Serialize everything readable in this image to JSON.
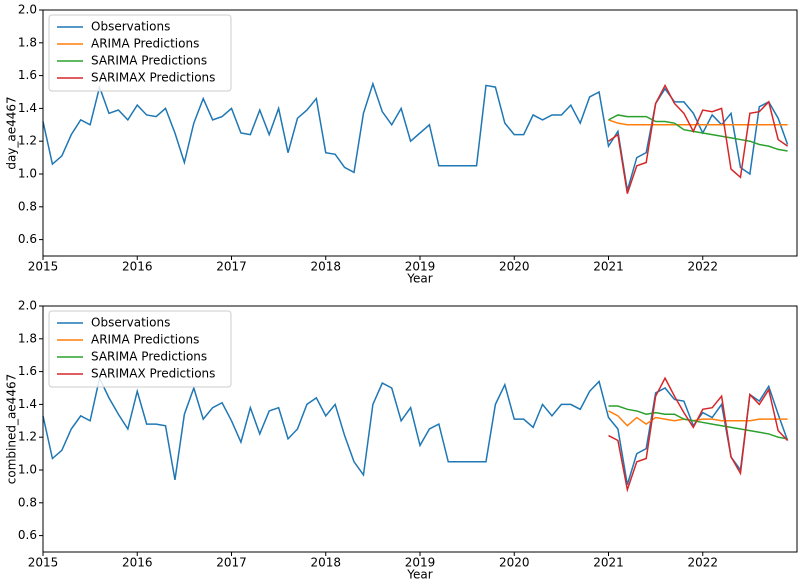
{
  "chart_data": [
    {
      "type": "line",
      "xlabel": "Year",
      "ylabel": "day_ae4467",
      "xlim": [
        2015,
        2023
      ],
      "ylim": [
        0.5,
        2.0
      ],
      "xticks": [
        2015,
        2016,
        2017,
        2018,
        2019,
        2020,
        2021,
        2022
      ],
      "yticks": [
        0.6,
        0.8,
        {
          "value": 1,
          "label": "1.0"
        },
        1.2,
        1.4,
        1.6,
        1.8,
        {
          "value": 2,
          "label": "2.0"
        }
      ],
      "grid": false,
      "legend": "upper-left",
      "series": [
        {
          "name": "Observations",
          "color": "#1f77b4",
          "x": [
            2015,
            2015.1,
            2015.2,
            2015.3,
            2015.4,
            2015.5,
            2015.6,
            2015.7,
            2015.8,
            2015.9,
            2016,
            2016.1,
            2016.2,
            2016.3,
            2016.4,
            2016.5,
            2016.6,
            2016.7,
            2016.8,
            2016.9,
            2017,
            2017.1,
            2017.2,
            2017.3,
            2017.4,
            2017.5,
            2017.6,
            2017.7,
            2017.8,
            2017.9,
            2018,
            2018.1,
            2018.2,
            2018.3,
            2018.4,
            2018.5,
            2018.6,
            2018.7,
            2018.8,
            2018.9,
            2019,
            2019.1,
            2019.2,
            2019.3,
            2019.4,
            2019.5,
            2019.6,
            2019.7,
            2019.8,
            2019.9,
            2020,
            2020.1,
            2020.2,
            2020.3,
            2020.4,
            2020.5,
            2020.6,
            2020.7,
            2020.8,
            2020.9,
            2021,
            2021.1,
            2021.2,
            2021.3,
            2021.4,
            2021.5,
            2021.6,
            2021.7,
            2021.8,
            2021.9,
            2022,
            2022.1,
            2022.2,
            2022.3,
            2022.4,
            2022.5,
            2022.6,
            2022.7,
            2022.8,
            2022.9
          ],
          "values": [
            1.32,
            1.06,
            1.11,
            1.24,
            1.33,
            1.3,
            1.53,
            1.37,
            1.39,
            1.33,
            1.42,
            1.36,
            1.35,
            1.4,
            1.25,
            1.07,
            1.31,
            1.46,
            1.33,
            1.35,
            1.4,
            1.25,
            1.24,
            1.39,
            1.24,
            1.4,
            1.13,
            1.34,
            1.39,
            1.46,
            1.13,
            1.12,
            1.04,
            1.01,
            1.37,
            1.55,
            1.38,
            1.3,
            1.4,
            1.2,
            1.25,
            1.3,
            1.05,
            1.05,
            1.05,
            1.05,
            1.05,
            1.54,
            1.53,
            1.31,
            1.24,
            1.24,
            1.36,
            1.33,
            1.36,
            1.36,
            1.42,
            1.31,
            1.47,
            1.5,
            1.17,
            1.26,
            0.9,
            1.1,
            1.13,
            1.43,
            1.52,
            1.44,
            1.44,
            1.37,
            1.25,
            1.36,
            1.3,
            1.37,
            1.04,
            1.0,
            1.41,
            1.44,
            1.34,
            1.18
          ]
        },
        {
          "name": "ARIMA Predictions",
          "color": "#ff7f0e",
          "x": [
            2021,
            2021.1,
            2021.2,
            2021.3,
            2021.4,
            2021.5,
            2021.6,
            2021.7,
            2021.8,
            2021.9,
            2022,
            2022.1,
            2022.2,
            2022.3,
            2022.4,
            2022.5,
            2022.6,
            2022.7,
            2022.8,
            2022.9
          ],
          "values": [
            1.33,
            1.31,
            1.3,
            1.3,
            1.3,
            1.3,
            1.3,
            1.3,
            1.3,
            1.3,
            1.3,
            1.3,
            1.3,
            1.3,
            1.3,
            1.3,
            1.3,
            1.3,
            1.3,
            1.3
          ]
        },
        {
          "name": "SARIMA Predictions",
          "color": "#2ca02c",
          "x": [
            2021,
            2021.1,
            2021.2,
            2021.3,
            2021.4,
            2021.5,
            2021.6,
            2021.7,
            2021.8,
            2021.9,
            2022,
            2022.1,
            2022.2,
            2022.3,
            2022.4,
            2022.5,
            2022.6,
            2022.7,
            2022.8,
            2022.9
          ],
          "values": [
            1.33,
            1.36,
            1.35,
            1.35,
            1.35,
            1.32,
            1.32,
            1.31,
            1.27,
            1.26,
            1.25,
            1.24,
            1.23,
            1.22,
            1.21,
            1.2,
            1.18,
            1.17,
            1.15,
            1.14
          ]
        },
        {
          "name": "SARIMAX Predictions",
          "color": "#d62728",
          "x": [
            2021,
            2021.1,
            2021.2,
            2021.3,
            2021.4,
            2021.5,
            2021.6,
            2021.7,
            2021.8,
            2021.9,
            2022,
            2022.1,
            2022.2,
            2022.3,
            2022.4,
            2022.5,
            2022.6,
            2022.7,
            2022.8,
            2022.9
          ],
          "values": [
            1.2,
            1.24,
            0.88,
            1.05,
            1.07,
            1.43,
            1.54,
            1.43,
            1.37,
            1.26,
            1.39,
            1.38,
            1.4,
            1.03,
            0.98,
            1.37,
            1.38,
            1.44,
            1.21,
            1.17
          ]
        }
      ]
    },
    {
      "type": "line",
      "xlabel": "Year",
      "ylabel": "combined_ae4467",
      "xlim": [
        2015,
        2023
      ],
      "ylim": [
        0.5,
        2.0
      ],
      "xticks": [
        2015,
        2016,
        2017,
        2018,
        2019,
        2020,
        2021,
        2022
      ],
      "yticks": [
        0.6,
        0.8,
        {
          "value": 1,
          "label": "1.0"
        },
        1.2,
        1.4,
        1.6,
        1.8,
        {
          "value": 2,
          "label": "2.0"
        }
      ],
      "grid": false,
      "legend": "upper-left",
      "series": [
        {
          "name": "Observations",
          "color": "#1f77b4",
          "x": [
            2015,
            2015.1,
            2015.2,
            2015.3,
            2015.4,
            2015.5,
            2015.6,
            2015.7,
            2015.8,
            2015.9,
            2016,
            2016.1,
            2016.2,
            2016.3,
            2016.4,
            2016.5,
            2016.6,
            2016.7,
            2016.8,
            2016.9,
            2017,
            2017.1,
            2017.2,
            2017.3,
            2017.4,
            2017.5,
            2017.6,
            2017.7,
            2017.8,
            2017.9,
            2018,
            2018.1,
            2018.2,
            2018.3,
            2018.4,
            2018.5,
            2018.6,
            2018.7,
            2018.8,
            2018.9,
            2019,
            2019.1,
            2019.2,
            2019.3,
            2019.4,
            2019.5,
            2019.6,
            2019.7,
            2019.8,
            2019.9,
            2020,
            2020.1,
            2020.2,
            2020.3,
            2020.4,
            2020.5,
            2020.6,
            2020.7,
            2020.8,
            2020.9,
            2021,
            2021.1,
            2021.2,
            2021.3,
            2021.4,
            2021.5,
            2021.6,
            2021.7,
            2021.8,
            2021.9,
            2022,
            2022.1,
            2022.2,
            2022.3,
            2022.4,
            2022.5,
            2022.6,
            2022.7,
            2022.8,
            2022.9
          ],
          "values": [
            1.33,
            1.07,
            1.12,
            1.25,
            1.33,
            1.3,
            1.56,
            1.44,
            1.34,
            1.25,
            1.48,
            1.28,
            1.28,
            1.27,
            0.94,
            1.34,
            1.5,
            1.31,
            1.38,
            1.41,
            1.3,
            1.17,
            1.38,
            1.22,
            1.36,
            1.38,
            1.19,
            1.25,
            1.4,
            1.44,
            1.33,
            1.4,
            1.21,
            1.05,
            0.97,
            1.4,
            1.53,
            1.5,
            1.3,
            1.38,
            1.15,
            1.25,
            1.28,
            1.05,
            1.05,
            1.05,
            1.05,
            1.05,
            1.4,
            1.52,
            1.31,
            1.31,
            1.26,
            1.4,
            1.33,
            1.4,
            1.4,
            1.37,
            1.48,
            1.54,
            1.32,
            1.25,
            0.91,
            1.1,
            1.13,
            1.47,
            1.5,
            1.43,
            1.42,
            1.27,
            1.35,
            1.32,
            1.4,
            1.08,
            1.0,
            1.46,
            1.42,
            1.51,
            1.34,
            1.18
          ]
        },
        {
          "name": "ARIMA Predictions",
          "color": "#ff7f0e",
          "x": [
            2021,
            2021.1,
            2021.2,
            2021.3,
            2021.4,
            2021.5,
            2021.6,
            2021.7,
            2021.8,
            2021.9,
            2022,
            2022.1,
            2022.2,
            2022.3,
            2022.4,
            2022.5,
            2022.6,
            2022.7,
            2022.8,
            2022.9
          ],
          "values": [
            1.36,
            1.33,
            1.27,
            1.32,
            1.28,
            1.32,
            1.31,
            1.3,
            1.31,
            1.3,
            1.31,
            1.31,
            1.3,
            1.3,
            1.3,
            1.3,
            1.31,
            1.31,
            1.31,
            1.31
          ]
        },
        {
          "name": "SARIMA Predictions",
          "color": "#2ca02c",
          "x": [
            2021,
            2021.1,
            2021.2,
            2021.3,
            2021.4,
            2021.5,
            2021.6,
            2021.7,
            2021.8,
            2021.9,
            2022,
            2022.1,
            2022.2,
            2022.3,
            2022.4,
            2022.5,
            2022.6,
            2022.7,
            2022.8,
            2022.9
          ],
          "values": [
            1.39,
            1.39,
            1.37,
            1.36,
            1.34,
            1.35,
            1.34,
            1.34,
            1.31,
            1.3,
            1.29,
            1.28,
            1.27,
            1.26,
            1.25,
            1.24,
            1.23,
            1.22,
            1.2,
            1.19
          ]
        },
        {
          "name": "SARIMAX Predictions",
          "color": "#d62728",
          "x": [
            2021,
            2021.1,
            2021.2,
            2021.3,
            2021.4,
            2021.5,
            2021.6,
            2021.7,
            2021.8,
            2021.9,
            2022,
            2022.1,
            2022.2,
            2022.3,
            2022.4,
            2022.5,
            2022.6,
            2022.7,
            2022.8,
            2022.9
          ],
          "values": [
            1.21,
            1.18,
            0.88,
            1.05,
            1.07,
            1.45,
            1.56,
            1.45,
            1.35,
            1.26,
            1.37,
            1.38,
            1.45,
            1.08,
            0.98,
            1.46,
            1.4,
            1.49,
            1.24,
            1.18
          ]
        }
      ]
    }
  ]
}
